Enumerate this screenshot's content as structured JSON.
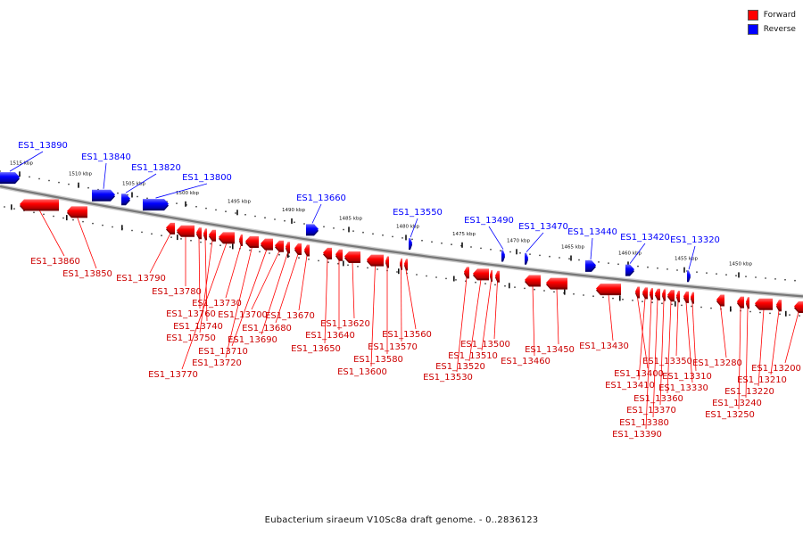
{
  "legend": {
    "forward_label": "Forward",
    "reverse_label": "Reverse",
    "forward_color": "#ff0000",
    "reverse_color": "#0000ff"
  },
  "caption": "Eubacterium siraeum V10Sc8a draft genome. - 0..2836123",
  "colors": {
    "backbone": "#777777",
    "forward": "#ff0000",
    "reverse": "#0000ff"
  },
  "ruler_labels": [
    "1515 kbp",
    "1510 kbp",
    "1505 kbp",
    "1500 kbp",
    "1495 kbp",
    "1490 kbp",
    "1485 kbp",
    "1480 kbp",
    "1475 kbp",
    "1470 kbp",
    "1465 kbp",
    "1460 kbp",
    "1455 kbp",
    "1450 kbp"
  ],
  "reverse_genes": [
    "ES1_13890",
    "ES1_13840",
    "ES1_13820",
    "ES1_13800",
    "ES1_13660",
    "ES1_13550",
    "ES1_13490",
    "ES1_13470",
    "ES1_13440",
    "ES1_13420",
    "ES1_13320"
  ],
  "forward_genes": [
    "ES1_13860",
    "ES1_13850",
    "ES1_13790",
    "ES1_13780",
    "ES1_13760",
    "ES1_13740",
    "ES1_13750",
    "ES1_13770",
    "ES1_13730",
    "ES1_13720",
    "ES1_13710",
    "ES1_13700",
    "ES1_13690",
    "ES1_13680",
    "ES1_13670",
    "ES1_13650",
    "ES1_13640",
    "ES1_13620",
    "ES1_13600",
    "ES1_13580",
    "ES1_13570",
    "ES1_13560",
    "ES1_13530",
    "ES1_13520",
    "ES1_13510",
    "ES1_13500",
    "ES1_13460",
    "ES1_13450",
    "ES1_13430",
    "ES1_13400",
    "ES1_13410",
    "ES1_13390",
    "ES1_13380",
    "ES1_13370",
    "ES1_13360",
    "ES1_13350",
    "ES1_13330",
    "ES1_13310",
    "ES1_13280",
    "ES1_13250",
    "ES1_13240",
    "ES1_13220",
    "ES1_13210",
    "ES1_13200"
  ]
}
